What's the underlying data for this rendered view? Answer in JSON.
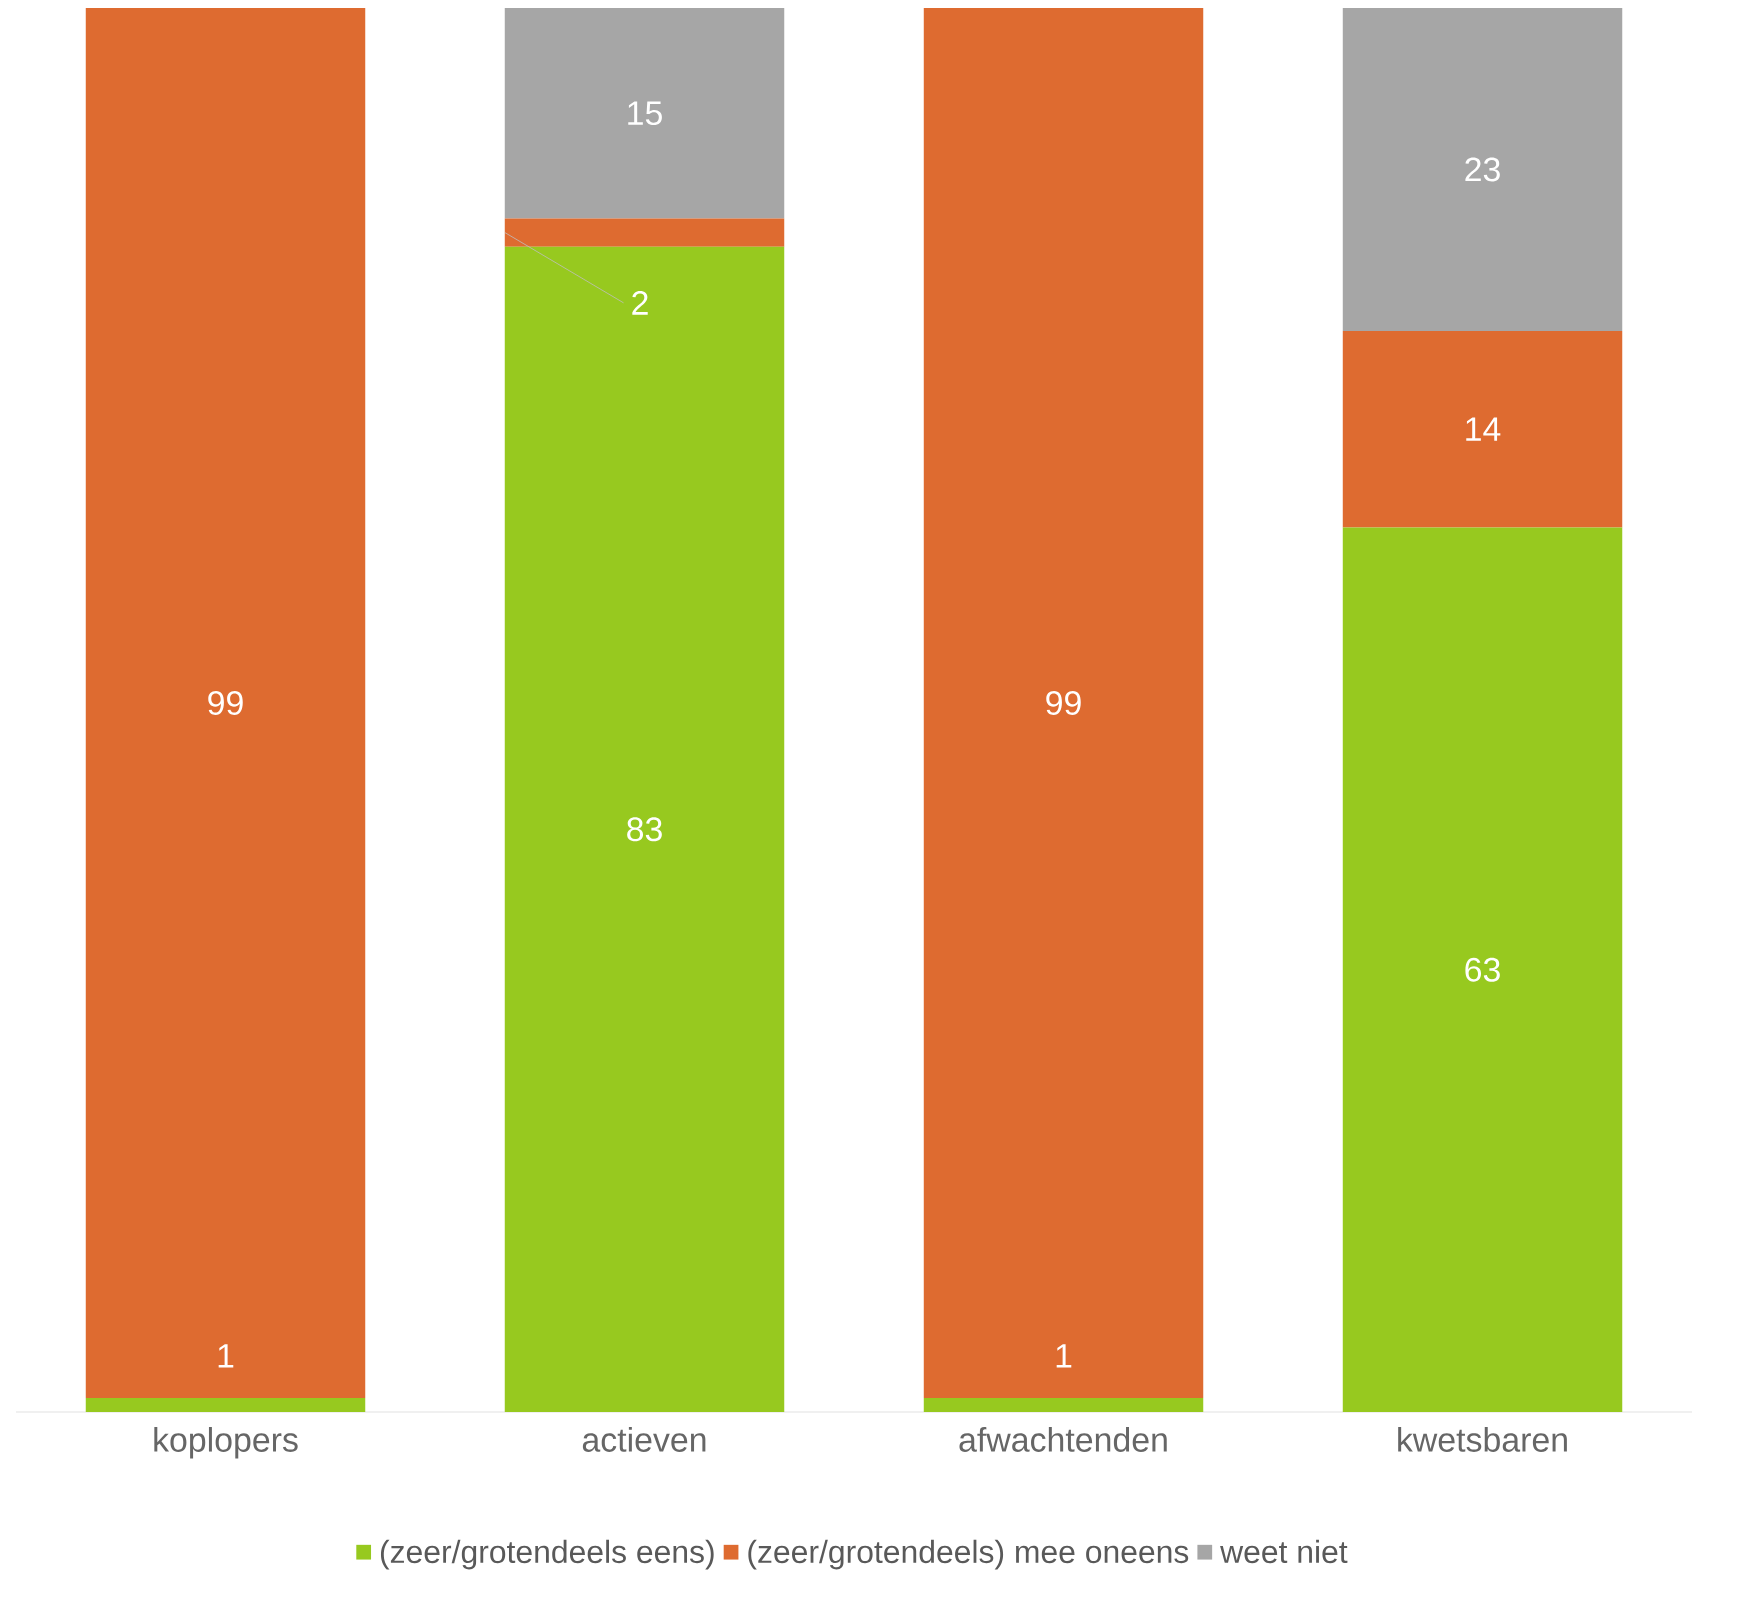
{
  "chart_data": {
    "type": "bar",
    "stacked": true,
    "categories": [
      "koplopers",
      "actieven",
      "afwachtenden",
      "kwetsbaren"
    ],
    "series": [
      {
        "name": "(zeer/grotendeels eens)",
        "color": "#97c91f",
        "values": [
          1,
          83,
          1,
          63
        ]
      },
      {
        "name": "(zeer/grotendeels) mee oneens",
        "color": "#de6b30",
        "values": [
          99,
          2,
          99,
          14
        ]
      },
      {
        "name": "weet niet",
        "color": "#a6a6a6",
        "values": [
          null,
          15,
          null,
          23
        ]
      }
    ],
    "data_labels": true,
    "legend": "bottom"
  }
}
